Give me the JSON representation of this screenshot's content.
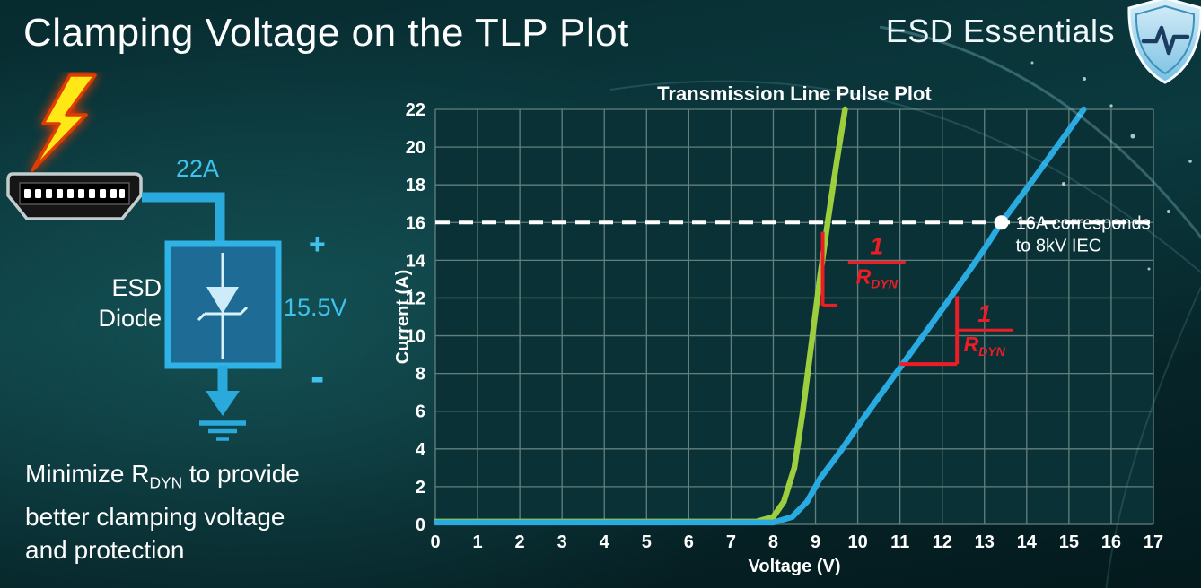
{
  "slide": {
    "title": "Clamping Voltage on the TLP Plot",
    "brand": "ESD Essentials"
  },
  "diagram": {
    "surge_current_label": "22A",
    "clamp_voltage_label": "15.5V",
    "plus_sign": "+",
    "minus_sign": "-",
    "component_line1": "ESD",
    "component_line2": "Diode",
    "accent_color": "#2fb3e6"
  },
  "note": {
    "prefix": "Minimize R",
    "subscript": "DYN",
    "suffix": " to provide",
    "line2": "better clamping voltage",
    "line3": "and protection"
  },
  "chart_data": {
    "type": "line",
    "title": "Transmission Line Pulse Plot",
    "xlabel": "Voltage (V)",
    "ylabel": "Current (A)",
    "xlim": [
      0,
      17
    ],
    "ylim": [
      0,
      22
    ],
    "xtick_step": 1,
    "ytick_step": 2,
    "grid": true,
    "legend": "none",
    "colors": {
      "plot_bg": "#0a3236",
      "grid": "#63807f",
      "text": "#ffffff",
      "annotation_red": "#ee1c25",
      "threshold": "#ffffff"
    },
    "series": [
      {
        "name": "green-low-rdyn",
        "color": "#9dce3e",
        "points": [
          [
            0,
            0.15
          ],
          [
            7.6,
            0.15
          ],
          [
            8.0,
            0.4
          ],
          [
            8.25,
            1.2
          ],
          [
            8.5,
            3
          ],
          [
            8.7,
            6
          ],
          [
            8.9,
            9.5
          ],
          [
            9.1,
            13
          ],
          [
            9.3,
            16.2
          ],
          [
            9.5,
            19.2
          ],
          [
            9.7,
            22
          ]
        ]
      },
      {
        "name": "blue-high-rdyn",
        "color": "#29abe2",
        "points": [
          [
            0,
            0.1
          ],
          [
            8.0,
            0.1
          ],
          [
            8.45,
            0.4
          ],
          [
            8.8,
            1.2
          ],
          [
            9.1,
            2.4
          ],
          [
            9.6,
            3.9
          ],
          [
            10,
            5.2
          ],
          [
            11,
            8.3
          ],
          [
            12,
            11.4
          ],
          [
            13,
            14.6
          ],
          [
            13.4,
            16
          ],
          [
            14,
            17.8
          ],
          [
            15,
            20.9
          ],
          [
            15.35,
            22
          ]
        ]
      }
    ],
    "threshold": {
      "y": 16,
      "marker_x": 13.4,
      "label_line1": "16A corresponds",
      "label_line2": "to 8kV IEC"
    },
    "slope_indicators": [
      {
        "curve": "green",
        "lines": [
          [
            9.17,
            15.5,
            9.17,
            11.6
          ],
          [
            9.17,
            11.6,
            9.5,
            11.6
          ]
        ],
        "frac_x": 10.45,
        "frac_y": 13.9
      },
      {
        "curve": "blue",
        "lines": [
          [
            11.0,
            8.5,
            12.35,
            8.5
          ],
          [
            12.35,
            8.5,
            12.35,
            12.1
          ]
        ],
        "frac_x": 13.0,
        "frac_y": 10.3
      }
    ],
    "slope_label": {
      "num": "1",
      "den": "R",
      "den_sub": "DYN"
    }
  }
}
